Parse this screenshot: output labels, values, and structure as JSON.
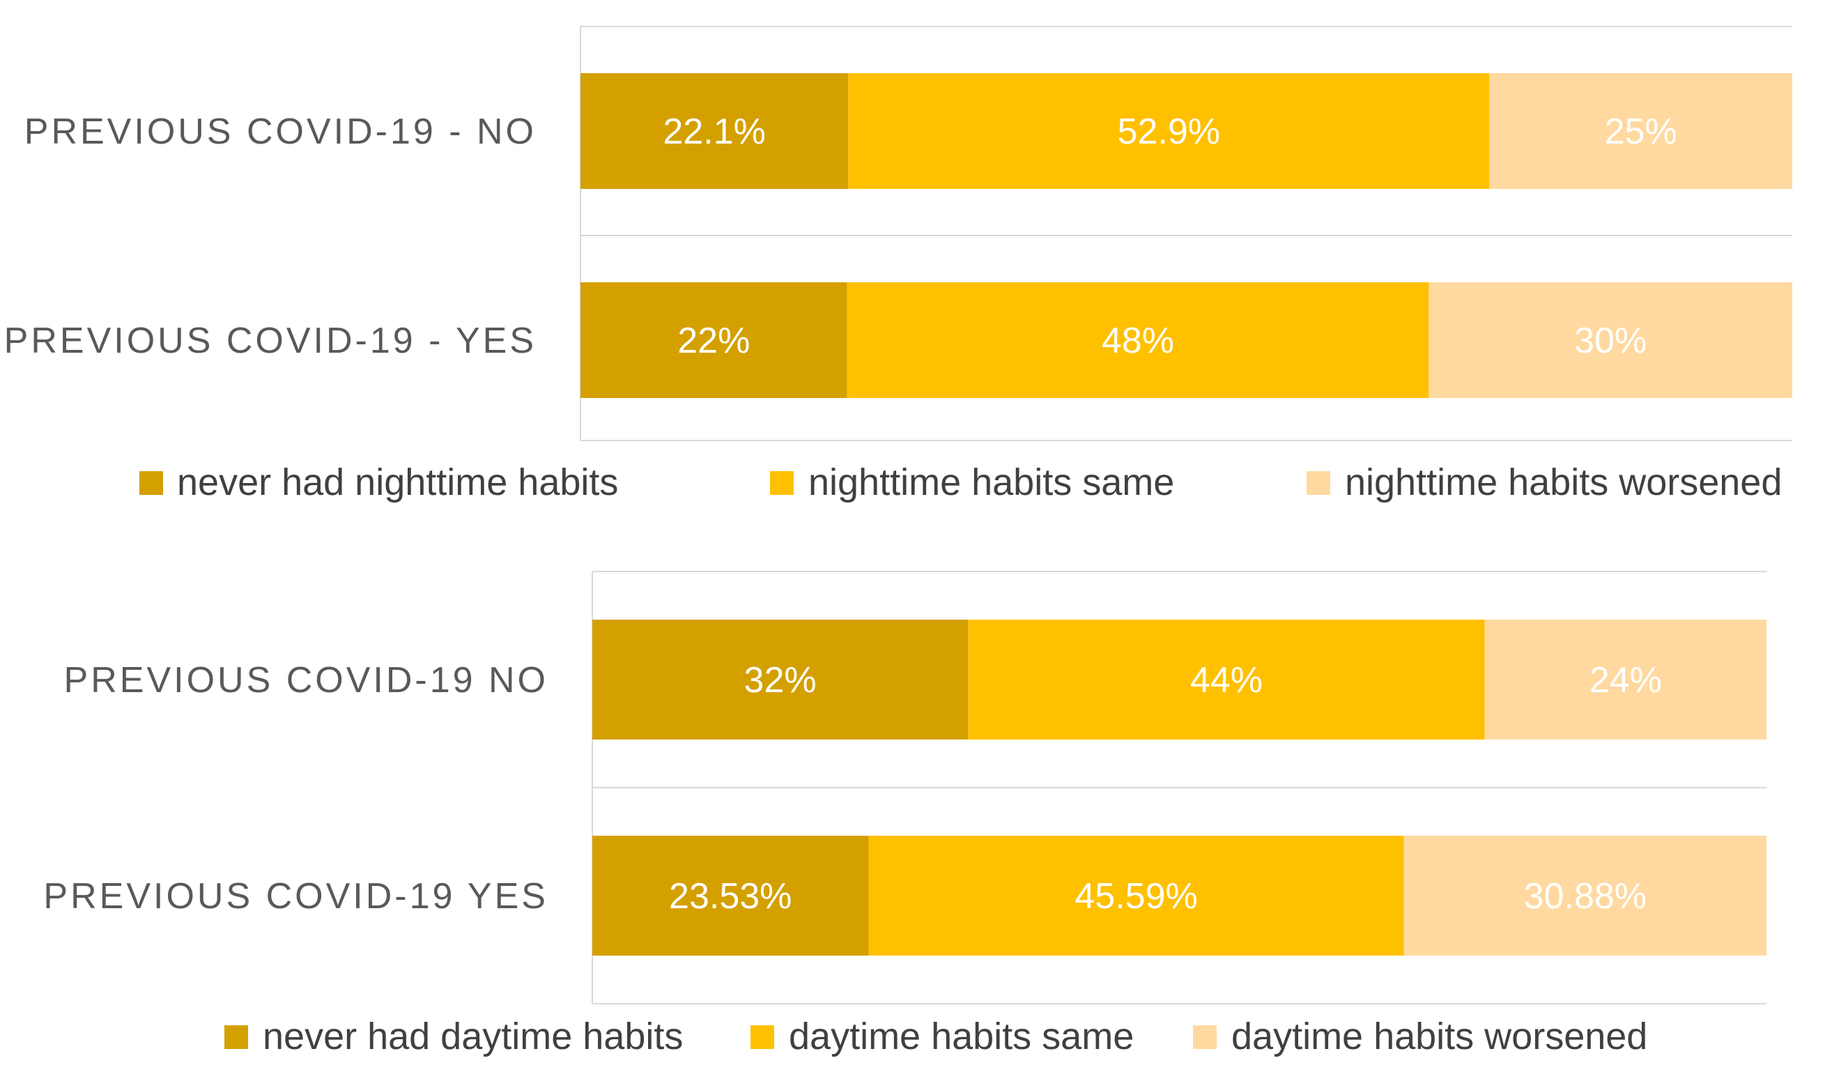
{
  "chart_data": [
    {
      "type": "bar",
      "orientation": "horizontal",
      "stacked": true,
      "normalized": true,
      "categories": [
        "PREVIOUS COVID-19 - NO",
        "PREVIOUS COVID-19 - YES"
      ],
      "series": [
        {
          "name": "never had nighttime habits",
          "color": "#D4A000",
          "values": [
            22.1,
            22
          ],
          "labels": [
            "22.1%",
            "22%"
          ]
        },
        {
          "name": "nighttime habits same",
          "color": "#FFC000",
          "values": [
            52.9,
            48
          ],
          "labels": [
            "52.9%",
            "48%"
          ]
        },
        {
          "name": "nighttime habits worsened",
          "color": "#FFD9A0",
          "values": [
            25,
            30
          ],
          "labels": [
            "25%",
            "30%"
          ]
        }
      ],
      "xlim": [
        0,
        100
      ],
      "grid": true,
      "legend": "bottom"
    },
    {
      "type": "bar",
      "orientation": "horizontal",
      "stacked": true,
      "normalized": true,
      "categories": [
        "PREVIOUS COVID-19  NO",
        "PREVIOUS COVID-19  YES"
      ],
      "series": [
        {
          "name": "never had daytime habits",
          "color": "#D4A000",
          "values": [
            32,
            23.53
          ],
          "labels": [
            "32%",
            "23.53%"
          ]
        },
        {
          "name": "daytime habits same",
          "color": "#FFC000",
          "values": [
            44,
            45.59
          ],
          "labels": [
            "44%",
            "45.59%"
          ]
        },
        {
          "name": "daytime habits worsened",
          "color": "#FFD9A0",
          "values": [
            24,
            30.88
          ],
          "labels": [
            "24%",
            "30.88%"
          ]
        }
      ],
      "xlim": [
        0,
        100
      ],
      "grid": true,
      "legend": "bottom"
    }
  ],
  "colors": {
    "label_text": "#595959",
    "value_text": "#FFFFFF",
    "legend_text": "#404040",
    "axis_line": "#D9D9D9"
  }
}
